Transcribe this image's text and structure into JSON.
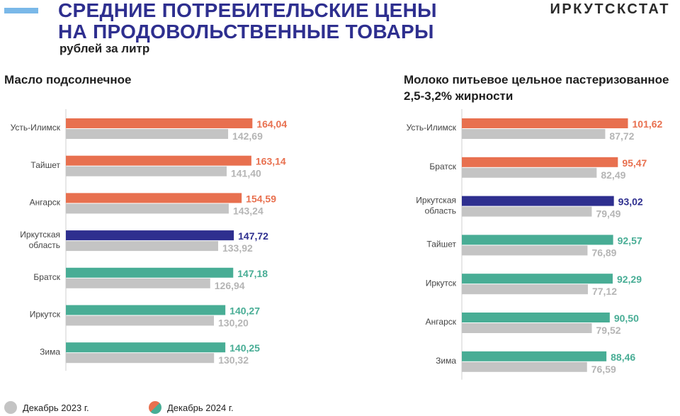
{
  "header": {
    "title_line1": "СРЕДНИЕ ПОТРЕБИТЕЛЬСКИЕ ЦЕНЫ",
    "title_line2": "НА ПРОДОВОЛЬСТВЕННЫЕ ТОВАРЫ",
    "subtitle": "рублей за литр",
    "brand": "ИРКУТСКСТАТ"
  },
  "colors": {
    "accent": "#7ab8e8",
    "title": "#2e2f8f",
    "orange": "#e8704f",
    "navy": "#2e2f8f",
    "teal": "#48ad95",
    "gray": "#c4c4c4",
    "gray_text": "#b5b5b5"
  },
  "legend": {
    "dec2023": "Декабрь 2023 г.",
    "dec2024": "Декабрь 2024 г."
  },
  "chart_data": [
    {
      "type": "bar",
      "orientation": "horizontal",
      "title": "Масло подсолнечное",
      "categories": [
        "Усть-Илимск",
        "Тайшет",
        "Ангарск",
        "Иркутская область",
        "Братск",
        "Иркутск",
        "Зима"
      ],
      "category_lines": [
        [
          "Усть-Илимск"
        ],
        [
          "Тайшет"
        ],
        [
          "Ангарск"
        ],
        [
          "Иркутская",
          "область"
        ],
        [
          "Братск"
        ],
        [
          "Иркутск"
        ],
        [
          "Зима"
        ]
      ],
      "bar_colors": [
        "orange",
        "orange",
        "orange",
        "navy",
        "teal",
        "teal",
        "teal"
      ],
      "series": [
        {
          "name": "Декабрь 2024 г.",
          "values": [
            164.04,
            163.14,
            154.59,
            147.72,
            147.18,
            140.27,
            140.25
          ],
          "labels": [
            "164,04",
            "163,14",
            "154,59",
            "147,72",
            "147,18",
            "140,27",
            "140,25"
          ]
        },
        {
          "name": "Декабрь 2023 г.",
          "values": [
            142.69,
            141.4,
            143.24,
            133.92,
            126.94,
            130.2,
            130.32
          ],
          "labels": [
            "142,69",
            "141,40",
            "143,24",
            "133,92",
            "126,94",
            "130,20",
            "130,32"
          ]
        }
      ],
      "xlim": [
        0,
        190
      ]
    },
    {
      "type": "bar",
      "orientation": "horizontal",
      "title_line1": "Молоко питьевое цельное пастеризованное",
      "title_line2": "2,5-3,2% жирности",
      "categories": [
        "Усть-Илимск",
        "Братск",
        "Иркутская область",
        "Тайшет",
        "Иркутск",
        "Ангарск",
        "Зима"
      ],
      "category_lines": [
        [
          "Усть-Илимск"
        ],
        [
          "Братск"
        ],
        [
          "Иркутская",
          "область"
        ],
        [
          "Тайшет"
        ],
        [
          "Иркутск"
        ],
        [
          "Ангарск"
        ],
        [
          "Зима"
        ]
      ],
      "bar_colors": [
        "orange",
        "orange",
        "navy",
        "teal",
        "teal",
        "teal",
        "teal"
      ],
      "series": [
        {
          "name": "Декабрь 2024 г.",
          "values": [
            101.62,
            95.47,
            93.02,
            92.57,
            92.29,
            90.5,
            88.46
          ],
          "labels": [
            "101,62",
            "95,47",
            "93,02",
            "92,57",
            "92,29",
            "90,50",
            "88,46"
          ]
        },
        {
          "name": "Декабрь 2023 г.",
          "values": [
            87.72,
            82.49,
            79.49,
            76.89,
            77.12,
            79.52,
            76.59
          ],
          "labels": [
            "87,72",
            "82,49",
            "79,49",
            "76,89",
            "77,12",
            "79,52",
            "76,59"
          ]
        }
      ],
      "xlim": [
        0,
        104
      ]
    }
  ]
}
